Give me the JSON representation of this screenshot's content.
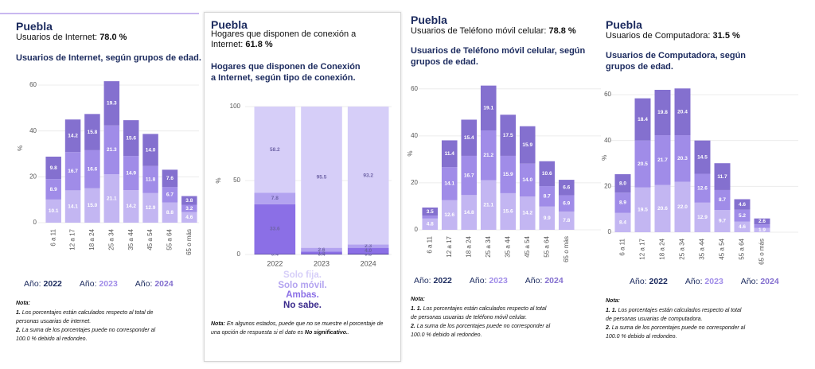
{
  "chart_data": [
    {
      "type": "bar",
      "stacked": true,
      "title": "Puebla",
      "kpi_label": "Usuarios de Internet:",
      "kpi_value": "78.0 %",
      "subtitle": "Usuarios de Internet, según grupos de edad.",
      "y_label": "%",
      "categories": [
        "6 a 11",
        "12 a 17",
        "18 a 24",
        "25 a 34",
        "35 a 44",
        "45 a 54",
        "55 a 64",
        "65 o más"
      ],
      "series": [
        {
          "name": "2022",
          "color": "#c3b6f2",
          "values": [
            10.1,
            14.1,
            15.0,
            21.1,
            14.2,
            12.9,
            8.8,
            4.6
          ],
          "value_labels": [
            "10.1",
            "14.1",
            "15.0",
            "21.1",
            "14.2",
            "12.9",
            "8.8",
            "4.6"
          ]
        },
        {
          "name": "2023",
          "color": "#a08ce8",
          "values": [
            8.9,
            16.7,
            16.6,
            21.3,
            14.9,
            11.8,
            6.7,
            3.2
          ],
          "value_labels": [
            "8.9",
            "16.7",
            "16.6",
            "21.3",
            "14.9",
            "11.8",
            "6.7",
            "3.2"
          ]
        },
        {
          "name": "2024",
          "color": "#8470cf",
          "values": [
            9.8,
            14.2,
            15.8,
            19.3,
            15.6,
            14.0,
            7.6,
            3.8
          ],
          "value_labels": [
            "9.8",
            "14.2",
            "15.8",
            "19.3",
            "15.6",
            "14.0",
            "7.6",
            "3.8"
          ]
        }
      ],
      "ylim": [
        0,
        65
      ],
      "yticks": [
        0,
        20,
        40,
        60
      ],
      "grid": true,
      "legend_label": "Año:",
      "note_title": "Nota:",
      "notes": [
        {
          "number": "1.",
          "text": "Los porcentajes están calculados respecto al total de personas usuarias de internet."
        },
        {
          "number": "2.",
          "text": "La suma de los porcentajes puede no corresponder al 100.0 % debido al redondeo."
        }
      ]
    },
    {
      "type": "bar",
      "stacked": true,
      "title": "Puebla",
      "kpi_label": "Hogares que disponen de conexión a Internet:",
      "kpi_value": "61.8 %",
      "subtitle": "Hogares que disponen de Conexión a Internet, según tipo de conexión.",
      "y_label": "%",
      "categories": [
        "2022",
        "2023",
        "2024"
      ],
      "series": [
        {
          "name": "Solo fija.",
          "color": "#d6cef8",
          "values": [
            58.2,
            95.5,
            93.2
          ],
          "value_labels": [
            "58.2",
            "95.5",
            "93.2"
          ]
        },
        {
          "name": "Solo móvil.",
          "color": "#b3a3f0",
          "values": [
            7.8,
            2.6,
            2.3
          ],
          "value_labels": [
            "7.8",
            "2.6",
            "2.3"
          ]
        },
        {
          "name": "Ambas.",
          "color": "#8b6fe6",
          "values": [
            33.6,
            1.5,
            4.0
          ],
          "value_labels": [
            "33.6",
            "1.5",
            "4.0"
          ]
        },
        {
          "name": "No sabe.",
          "color": "#3a2a8c",
          "values": [
            0.4,
            0.4,
            0.5
          ],
          "value_labels": [
            "0.4",
            "0.4",
            "0.5"
          ]
        }
      ],
      "ylim": [
        0,
        100
      ],
      "yticks": [
        0,
        50,
        100
      ],
      "grid": true,
      "note_title": "Nota:",
      "notes": [
        {
          "text": "En algunos estados, puede que no se muestre el porcentaje de una opción de respuesta si el dato es",
          "emphasis": "No significativo.",
          "end": "."
        }
      ]
    },
    {
      "type": "bar",
      "stacked": true,
      "title": "Puebla",
      "kpi_label": "Usuarios de Teléfono móvil celular:",
      "kpi_value": "78.8 %",
      "subtitle": "Usuarios de Teléfono móvil celular, según grupos de edad.",
      "y_label": "%",
      "categories": [
        "6 a 11",
        "12 a 17",
        "18 a 24",
        "25 a 34",
        "35 a 44",
        "45 a 54",
        "55 a 64",
        "65 o más"
      ],
      "series": [
        {
          "name": "2022",
          "color": "#c3b6f2",
          "values": [
            4.8,
            12.6,
            14.8,
            21.1,
            15.6,
            14.2,
            9.9,
            7.8
          ],
          "value_labels": [
            "4.8",
            "12.6",
            "14.8",
            "21.1",
            "15.6",
            "14.2",
            "9.9",
            "7.8"
          ]
        },
        {
          "name": "2023",
          "color": "#a08ce8",
          "values": [
            1.2,
            14.1,
            16.7,
            21.2,
            15.9,
            14.0,
            8.7,
            6.9
          ],
          "value_labels": [
            null,
            "14.1",
            "16.7",
            "21.2",
            "15.9",
            "14.0",
            "8.7",
            "6.9"
          ]
        },
        {
          "name": "2024",
          "color": "#8470cf",
          "values": [
            3.5,
            11.4,
            15.4,
            19.1,
            17.5,
            15.9,
            10.6,
            6.6
          ],
          "value_labels": [
            "3.5",
            "11.4",
            "15.4",
            "19.1",
            "17.5",
            "15.9",
            "10.6",
            "6.6"
          ]
        }
      ],
      "ylim": [
        0,
        65
      ],
      "yticks": [
        0,
        20,
        40,
        60
      ],
      "grid": true,
      "legend_label": "Año:",
      "note_title": "Nota:",
      "notes": [
        {
          "number": "1. 1.",
          "text": "Los porcentajes están calculados respecto al total de personas usuarias de teléfono móvil celular."
        },
        {
          "number": "2.",
          "text": "La suma de los porcentajes puede no corresponder al 100.0 % debido al redondeo."
        }
      ]
    },
    {
      "type": "bar",
      "stacked": true,
      "title": "Puebla",
      "kpi_label": "Usuarios de Computadora:",
      "kpi_value": "31.5 %",
      "subtitle": "Usuarios de Computadora, según grupos de edad.",
      "y_label": "%",
      "categories": [
        "6 a 11",
        "12 a 17",
        "18 a 24",
        "25 a 34",
        "35 a 44",
        "45 a 54",
        "55 a 64",
        "65 o más"
      ],
      "series": [
        {
          "name": "2022",
          "color": "#c3b6f2",
          "values": [
            8.4,
            19.5,
            20.6,
            22.0,
            12.9,
            9.7,
            4.6,
            1.9
          ],
          "value_labels": [
            "8.4",
            "19.5",
            "20.6",
            "22.0",
            "12.9",
            "9.7",
            "4.6",
            "1.9"
          ]
        },
        {
          "name": "2023",
          "color": "#a08ce8",
          "values": [
            8.9,
            20.5,
            21.7,
            20.3,
            12.6,
            8.7,
            5.2,
            1.5
          ],
          "value_labels": [
            "8.9",
            "20.5",
            "21.7",
            "20.3",
            "12.6",
            "8.7",
            "5.2",
            null
          ]
        },
        {
          "name": "2024",
          "color": "#8470cf",
          "values": [
            8.0,
            18.4,
            19.8,
            20.4,
            14.5,
            11.7,
            4.6,
            2.6
          ],
          "value_labels": [
            "8.0",
            "18.4",
            "19.8",
            "20.4",
            "14.5",
            "11.7",
            "4.6",
            "2.6"
          ]
        }
      ],
      "ylim": [
        0,
        65
      ],
      "yticks": [
        0,
        20,
        40,
        60
      ],
      "grid": true,
      "legend_label": "Año:",
      "note_title": "Nota:",
      "notes": [
        {
          "number": "1. 1.",
          "text": "Los porcentajes están calculados respecto al total de personas usuarias de computadora."
        },
        {
          "number": "2.",
          "text": "La suma de los porcentajes puede no corresponder al 100.0 % debido al redondeo."
        }
      ]
    }
  ]
}
